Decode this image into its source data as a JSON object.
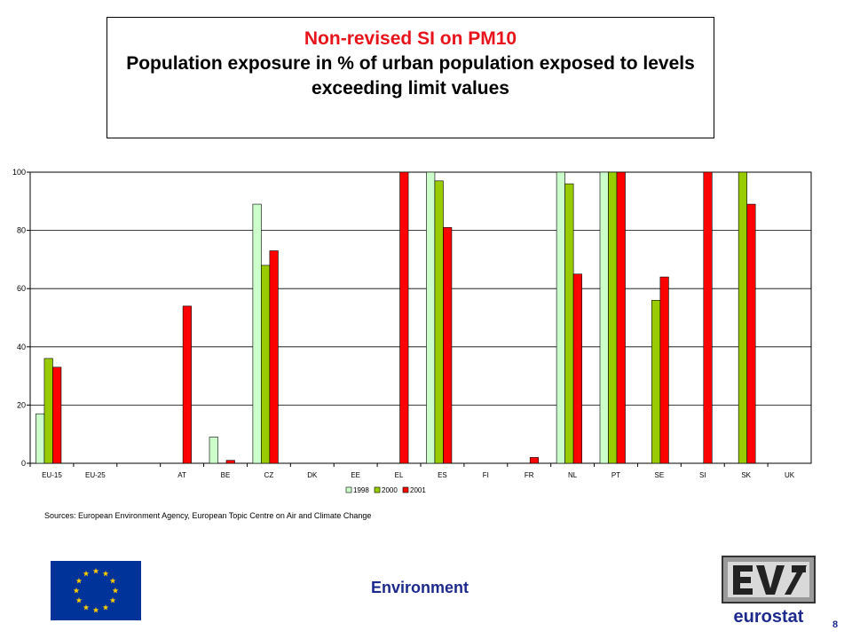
{
  "header": {
    "title": "Non-revised SI on PM10",
    "subtitle_line1": "Population exposure in % of urban population exposed to levels",
    "subtitle_line2": "exceeding limit values"
  },
  "sources": "Sources: European Environment Agency, European Topic Centre on Air and Climate Change",
  "footer": {
    "label": "Environment",
    "page_number": "8",
    "logo_text": "eurostat"
  },
  "icons": {
    "flag": "eu-flag-icon",
    "logo": "eurostat-logo-icon"
  },
  "colors": {
    "s1998": "#ccffcc",
    "s2000": "#99cc00",
    "s2001": "#ff0000",
    "accent": "#1d2a8c",
    "title_red": "#e8141b"
  },
  "chart_data": {
    "type": "bar",
    "categories": [
      "EU-15",
      "EU-25",
      "",
      "AT",
      "BE",
      "CZ",
      "DK",
      "EE",
      "EL",
      "ES",
      "FI",
      "FR",
      "NL",
      "PT",
      "SE",
      "SI",
      "SK",
      "UK"
    ],
    "series": [
      {
        "name": "1998",
        "color": "#ccffcc",
        "values": [
          17,
          null,
          null,
          null,
          9,
          89,
          null,
          null,
          null,
          100,
          null,
          null,
          100,
          100,
          null,
          null,
          null,
          null
        ]
      },
      {
        "name": "2000",
        "color": "#99cc00",
        "values": [
          36,
          null,
          null,
          null,
          null,
          68,
          null,
          null,
          null,
          97,
          null,
          null,
          96,
          100,
          56,
          null,
          100,
          null
        ]
      },
      {
        "name": "2001",
        "color": "#ff0000",
        "values": [
          33,
          null,
          null,
          54,
          1,
          73,
          null,
          null,
          100,
          81,
          null,
          2,
          65,
          100,
          64,
          100,
          89,
          null
        ]
      }
    ],
    "ylim": [
      0,
      100
    ],
    "yticks": [
      0,
      20,
      40,
      60,
      80,
      100
    ],
    "grid": true,
    "legend": "bottom"
  }
}
